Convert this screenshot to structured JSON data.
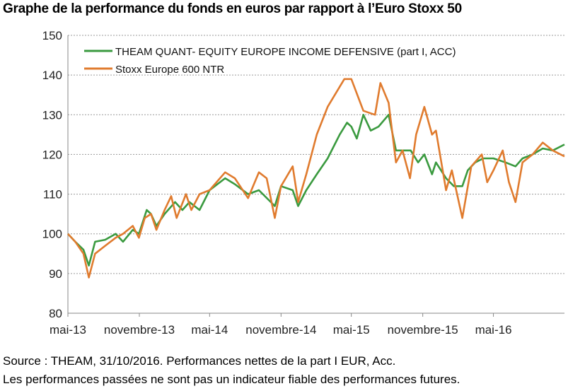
{
  "chart_data": {
    "type": "line",
    "title": "Graphe de la performance du fonds en euros par rapport à l’Euro Stoxx 50",
    "xlabel": "",
    "ylabel": "",
    "ylim": [
      80,
      150
    ],
    "yticks": [
      80,
      90,
      100,
      110,
      120,
      130,
      140,
      150
    ],
    "xlim": [
      "2013-05-01",
      "2016-10-31"
    ],
    "xticks": [
      {
        "date": "2013-05-01",
        "label": "mai-13"
      },
      {
        "date": "2013-11-01",
        "label": "novembre-13"
      },
      {
        "date": "2014-05-01",
        "label": "mai-14"
      },
      {
        "date": "2014-11-01",
        "label": "novembre-14"
      },
      {
        "date": "2015-05-01",
        "label": "mai-15"
      },
      {
        "date": "2015-11-01",
        "label": "novembre-15"
      },
      {
        "date": "2016-05-01",
        "label": "mai-16"
      }
    ],
    "grid": "horizontal dashed",
    "legend": "top-left",
    "series": [
      {
        "name": "THEAM QUANT- EQUITY EUROPE INCOME DEFENSIVE (part I, ACC)",
        "color": "#3a9a3f",
        "points": [
          [
            "2013-05-01",
            100
          ],
          [
            "2013-05-20",
            98
          ],
          [
            "2013-06-10",
            96
          ],
          [
            "2013-06-24",
            92
          ],
          [
            "2013-07-10",
            98
          ],
          [
            "2013-08-05",
            98.5
          ],
          [
            "2013-09-01",
            100
          ],
          [
            "2013-09-20",
            98
          ],
          [
            "2013-10-15",
            101
          ],
          [
            "2013-10-31",
            100
          ],
          [
            "2013-11-10",
            103
          ],
          [
            "2013-11-20",
            106
          ],
          [
            "2013-12-01",
            105
          ],
          [
            "2013-12-15",
            102
          ],
          [
            "2014-01-05",
            105
          ],
          [
            "2014-02-01",
            108
          ],
          [
            "2014-02-20",
            106
          ],
          [
            "2014-03-10",
            108
          ],
          [
            "2014-04-05",
            106
          ],
          [
            "2014-05-01",
            111
          ],
          [
            "2014-06-10",
            114
          ],
          [
            "2014-07-05",
            112.5
          ],
          [
            "2014-08-08",
            110
          ],
          [
            "2014-09-05",
            111
          ],
          [
            "2014-10-16",
            107
          ],
          [
            "2014-11-01",
            112
          ],
          [
            "2014-12-01",
            111
          ],
          [
            "2014-12-15",
            107
          ],
          [
            "2015-01-05",
            111
          ],
          [
            "2015-02-01",
            115
          ],
          [
            "2015-03-01",
            119
          ],
          [
            "2015-04-01",
            125
          ],
          [
            "2015-04-20",
            128
          ],
          [
            "2015-05-01",
            127
          ],
          [
            "2015-05-15",
            124
          ],
          [
            "2015-06-01",
            130
          ],
          [
            "2015-06-20",
            126
          ],
          [
            "2015-07-10",
            127
          ],
          [
            "2015-08-05",
            130
          ],
          [
            "2015-08-24",
            121
          ],
          [
            "2015-09-10",
            121
          ],
          [
            "2015-10-01",
            121
          ],
          [
            "2015-10-20",
            118
          ],
          [
            "2015-11-05",
            120
          ],
          [
            "2015-11-25",
            115
          ],
          [
            "2015-12-05",
            118
          ],
          [
            "2015-12-31",
            114
          ],
          [
            "2016-01-20",
            112
          ],
          [
            "2016-02-11",
            112
          ],
          [
            "2016-02-25",
            116
          ],
          [
            "2016-03-15",
            118
          ],
          [
            "2016-04-05",
            119
          ],
          [
            "2016-05-01",
            119
          ],
          [
            "2016-06-01",
            118
          ],
          [
            "2016-06-27",
            117
          ],
          [
            "2016-07-15",
            119
          ],
          [
            "2016-08-10",
            120
          ],
          [
            "2016-09-05",
            121.5
          ],
          [
            "2016-10-01",
            121
          ],
          [
            "2016-10-31",
            122.5
          ]
        ]
      },
      {
        "name": "Stoxx Europe 600 NTR",
        "color": "#e07b2e",
        "points": [
          [
            "2013-05-01",
            100
          ],
          [
            "2013-05-20",
            98
          ],
          [
            "2013-06-10",
            95
          ],
          [
            "2013-06-24",
            89
          ],
          [
            "2013-07-10",
            95
          ],
          [
            "2013-08-05",
            97
          ],
          [
            "2013-09-01",
            99
          ],
          [
            "2013-09-20",
            100
          ],
          [
            "2013-10-15",
            102
          ],
          [
            "2013-10-31",
            99
          ],
          [
            "2013-11-15",
            104
          ],
          [
            "2013-12-01",
            105
          ],
          [
            "2013-12-15",
            101
          ],
          [
            "2014-01-05",
            106
          ],
          [
            "2014-01-22",
            109.5
          ],
          [
            "2014-02-05",
            104
          ],
          [
            "2014-03-01",
            110
          ],
          [
            "2014-03-15",
            106
          ],
          [
            "2014-04-05",
            110
          ],
          [
            "2014-05-01",
            111
          ],
          [
            "2014-06-10",
            115.5
          ],
          [
            "2014-07-05",
            114
          ],
          [
            "2014-08-08",
            109
          ],
          [
            "2014-09-05",
            115.5
          ],
          [
            "2014-09-25",
            114
          ],
          [
            "2014-10-16",
            104
          ],
          [
            "2014-11-01",
            112
          ],
          [
            "2014-12-01",
            117
          ],
          [
            "2014-12-15",
            108
          ],
          [
            "2015-01-05",
            115
          ],
          [
            "2015-02-01",
            125
          ],
          [
            "2015-03-01",
            132
          ],
          [
            "2015-04-13",
            139
          ],
          [
            "2015-05-01",
            139
          ],
          [
            "2015-06-01",
            131
          ],
          [
            "2015-07-01",
            130
          ],
          [
            "2015-07-15",
            138
          ],
          [
            "2015-08-05",
            133
          ],
          [
            "2015-08-24",
            118
          ],
          [
            "2015-09-10",
            121
          ],
          [
            "2015-09-29",
            114
          ],
          [
            "2015-10-15",
            125
          ],
          [
            "2015-11-05",
            132
          ],
          [
            "2015-11-25",
            125
          ],
          [
            "2015-12-05",
            126
          ],
          [
            "2015-12-31",
            111
          ],
          [
            "2016-01-15",
            116
          ],
          [
            "2016-02-11",
            104
          ],
          [
            "2016-03-05",
            117
          ],
          [
            "2016-04-01",
            120
          ],
          [
            "2016-04-15",
            113
          ],
          [
            "2016-05-01",
            116
          ],
          [
            "2016-05-25",
            121
          ],
          [
            "2016-06-10",
            113
          ],
          [
            "2016-06-27",
            108
          ],
          [
            "2016-07-15",
            118
          ],
          [
            "2016-08-10",
            120
          ],
          [
            "2016-09-05",
            123
          ],
          [
            "2016-10-01",
            121
          ],
          [
            "2016-10-31",
            119.5
          ]
        ]
      }
    ]
  },
  "footer": {
    "source": "Source : THEAM, 31/10/2016. Performances nettes de la part I EUR, Acc.",
    "disclaimer": "Les performances passées ne sont pas un indicateur fiable des performances futures."
  }
}
